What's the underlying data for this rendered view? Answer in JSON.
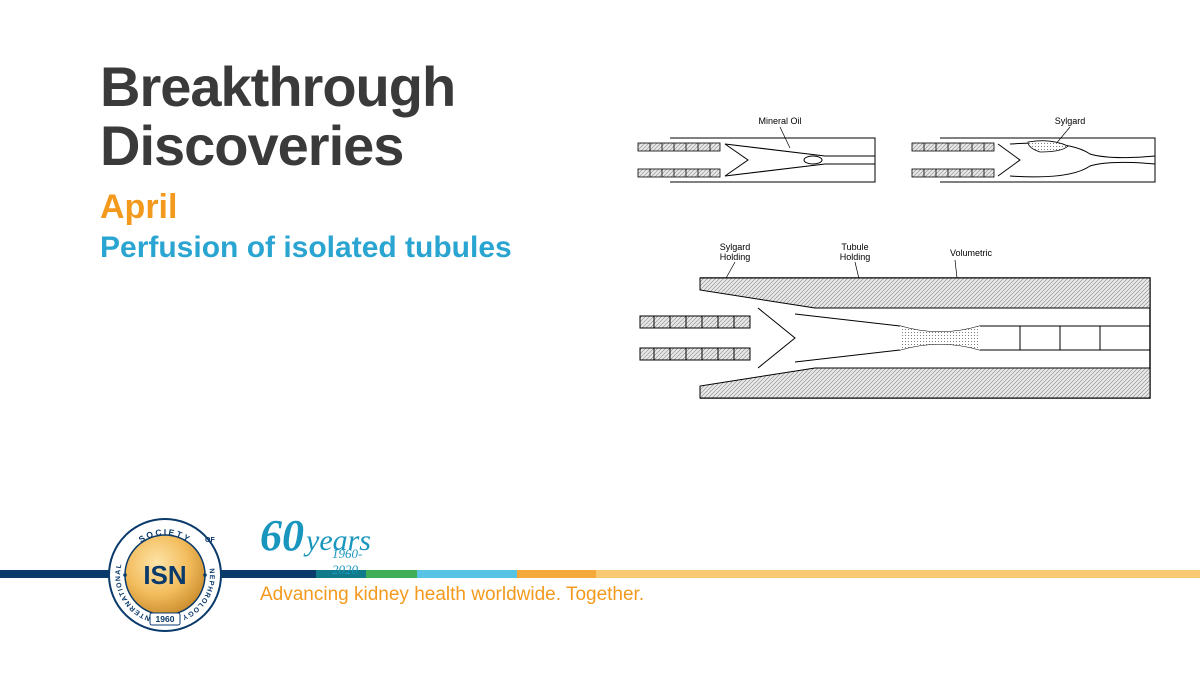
{
  "header": {
    "title_line1": "Breakthrough",
    "title_line2": "Discoveries",
    "month": "April",
    "subtitle": "Perfusion of isolated tubules"
  },
  "colors": {
    "title": "#3a3a3a",
    "month": "#f39a1e",
    "subtitle": "#2aa5d1",
    "anniversary": "#1996bd",
    "tagline": "#f39a1e",
    "stripe_segments": [
      {
        "color": "#0a3a6b",
        "flex": 2.2
      },
      {
        "color": "#0e7a8a",
        "flex": 0.35
      },
      {
        "color": "#3fae56",
        "flex": 0.35
      },
      {
        "color": "#58c3e2",
        "flex": 0.7
      },
      {
        "color": "#f6a93b",
        "flex": 0.55
      },
      {
        "color": "#f9c873",
        "flex": 4.2
      }
    ],
    "seal_outer": "#0a3a6b",
    "seal_gold1": "#f6c978",
    "seal_gold2": "#e0a83e",
    "seal_text": "#0a3a6b"
  },
  "diagram": {
    "top_left_label": "Mineral Oil",
    "top_right_label": "Sylgard",
    "bottom_labels": [
      "Sylgard\nHolding",
      "Tubule\nHolding",
      "Volumetric"
    ],
    "stroke": "#000000",
    "hatch_fill": "#cccccc"
  },
  "seal": {
    "org_top": "SOCIETY",
    "org_left": "INTERNATIONAL",
    "org_right": "NEPHROLOGY",
    "of": "OF",
    "abbrev": "ISN",
    "year": "1960"
  },
  "anniversary": {
    "number": "60",
    "word": "years",
    "range": "1960-2020"
  },
  "tagline": "Advancing kidney health worldwide. Together."
}
